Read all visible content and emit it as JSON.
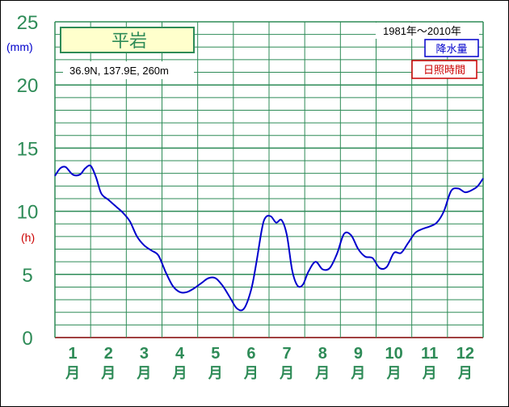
{
  "chart_data": {
    "type": "line",
    "title": "平岩",
    "location": "36.9N,  137.9E,  260m",
    "period": "1981年〜2010年",
    "legend": [
      {
        "label": "降水量",
        "color": "#0000cc"
      },
      {
        "label": "日照時間",
        "color": "#cc0000"
      }
    ],
    "y_unit_top": "(mm)",
    "y_unit_bottom": "(h)",
    "y_ticks": [
      "0",
      "5",
      "10",
      "15",
      "20",
      "25"
    ],
    "ylim": [
      0,
      25
    ],
    "months": [
      {
        "num": "1",
        "kanji": "月"
      },
      {
        "num": "2",
        "kanji": "月"
      },
      {
        "num": "3",
        "kanji": "月"
      },
      {
        "num": "4",
        "kanji": "月"
      },
      {
        "num": "5",
        "kanji": "月"
      },
      {
        "num": "6",
        "kanji": "月"
      },
      {
        "num": "7",
        "kanji": "月"
      },
      {
        "num": "8",
        "kanji": "月"
      },
      {
        "num": "9",
        "kanji": "月"
      },
      {
        "num": "10",
        "kanji": "月"
      },
      {
        "num": "11",
        "kanji": "月"
      },
      {
        "num": "12",
        "kanji": "月"
      }
    ],
    "series": [
      {
        "name": "降水量",
        "color": "#0000cc",
        "x_months": [
          0,
          0.15,
          0.3,
          0.5,
          0.7,
          0.85,
          1.0,
          1.15,
          1.3,
          1.5,
          1.7,
          1.9,
          2.1,
          2.3,
          2.5,
          2.7,
          2.9,
          3.1,
          3.3,
          3.5,
          3.7,
          3.9,
          4.1,
          4.3,
          4.5,
          4.7,
          4.9,
          5.1,
          5.3,
          5.5,
          5.65,
          5.8,
          5.9,
          6.05,
          6.2,
          6.35,
          6.5,
          6.65,
          6.8,
          6.95,
          7.1,
          7.3,
          7.5,
          7.7,
          7.9,
          8.1,
          8.3,
          8.5,
          8.7,
          8.9,
          9.1,
          9.3,
          9.5,
          9.7,
          9.9,
          10.1,
          10.3,
          10.5,
          10.7,
          10.9,
          11.1,
          11.3,
          11.5,
          11.7,
          11.85,
          12.0
        ],
        "values": [
          12.8,
          13.4,
          13.5,
          12.9,
          12.9,
          13.4,
          13.6,
          12.7,
          11.4,
          10.9,
          10.4,
          9.9,
          9.2,
          8.0,
          7.3,
          6.9,
          6.5,
          5.2,
          4.1,
          3.6,
          3.6,
          3.9,
          4.3,
          4.7,
          4.7,
          4.1,
          3.2,
          2.3,
          2.3,
          3.8,
          6.0,
          8.6,
          9.5,
          9.6,
          9.1,
          9.3,
          8.1,
          5.3,
          4.1,
          4.2,
          5.2,
          6.0,
          5.4,
          5.5,
          6.6,
          8.2,
          8.1,
          7.0,
          6.4,
          6.3,
          5.5,
          5.6,
          6.7,
          6.7,
          7.5,
          8.3,
          8.6,
          8.8,
          9.1,
          10.0,
          11.6,
          11.8,
          11.5,
          11.7,
          12.0,
          12.6
        ]
      }
    ]
  }
}
